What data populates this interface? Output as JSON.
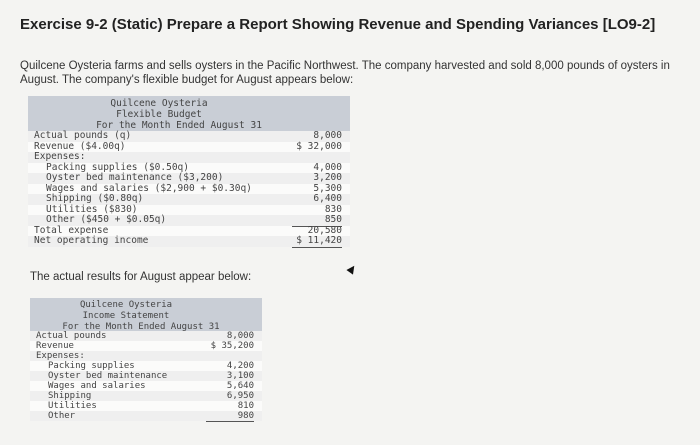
{
  "title": "Exercise 9-2 (Static) Prepare a Report Showing Revenue and Spending Variances [LO9-2]",
  "intro": "Quilcene Oysteria farms and sells oysters in the Pacific Northwest. The company harvested and sold 8,000 pounds of oysters in August. The company's flexible budget for August appears below:",
  "actual_intro": "The actual results for August appear below:",
  "flexible_budget": {
    "header": [
      "Quilcene Oysteria",
      "Flexible Budget",
      "For the Month Ended August 31"
    ],
    "rows": [
      {
        "label": "Actual pounds (q)",
        "value": "8,000",
        "indent": 0
      },
      {
        "label": "Revenue ($4.00q)",
        "value": "$ 32,000",
        "indent": 0,
        "underline": true
      },
      {
        "label": "Expenses:",
        "value": "",
        "indent": 0
      },
      {
        "label": "Packing supplies ($0.50q)",
        "value": "4,000",
        "indent": 1
      },
      {
        "label": "Oyster bed maintenance ($3,200)",
        "value": "3,200",
        "indent": 1
      },
      {
        "label": "Wages and salaries ($2,900 + $0.30q)",
        "value": "5,300",
        "indent": 1
      },
      {
        "label": "Shipping ($0.80q)",
        "value": "6,400",
        "indent": 1
      },
      {
        "label": "Utilities ($830)",
        "value": "830",
        "indent": 1
      },
      {
        "label": "Other ($450 + $0.05q)",
        "value": "850",
        "indent": 1,
        "underline": true
      },
      {
        "label": "Total expense",
        "value": "20,580",
        "indent": 0,
        "underline": true
      },
      {
        "label": "Net operating income",
        "value": "$ 11,420",
        "indent": 0,
        "underline": true
      }
    ]
  },
  "income_statement": {
    "header": [
      "Quilcene Oysteria",
      "Income Statement",
      "For the Month Ended August 31"
    ],
    "rows": [
      {
        "label": "Actual pounds",
        "value": "8,000",
        "indent": 0
      },
      {
        "label": "Revenue",
        "value": "$ 35,200",
        "indent": 0,
        "underline": true
      },
      {
        "label": "Expenses:",
        "value": "",
        "indent": 0
      },
      {
        "label": "Packing supplies",
        "value": "4,200",
        "indent": 1
      },
      {
        "label": "Oyster bed maintenance",
        "value": "3,100",
        "indent": 1
      },
      {
        "label": "Wages and salaries",
        "value": "5,640",
        "indent": 1
      },
      {
        "label": "Shipping",
        "value": "6,950",
        "indent": 1
      },
      {
        "label": "Utilities",
        "value": "810",
        "indent": 1
      },
      {
        "label": "Other",
        "value": "980",
        "indent": 1,
        "underline": true
      }
    ]
  }
}
